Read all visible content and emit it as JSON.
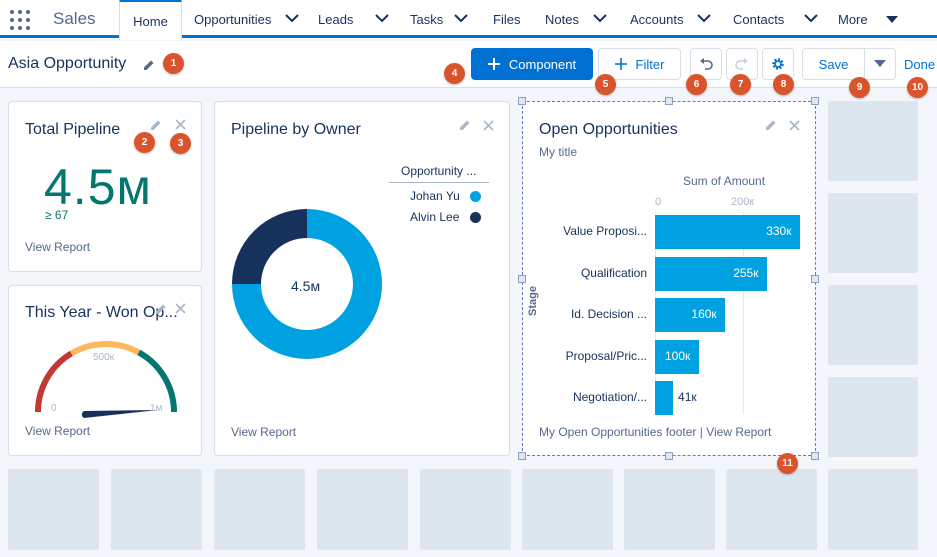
{
  "app": {
    "name": "Sales"
  },
  "nav": {
    "tabs": [
      {
        "label": "Home",
        "active": true,
        "dropdown": false
      },
      {
        "label": "Opportunities",
        "dropdown": true
      },
      {
        "label": "Leads",
        "dropdown": true
      },
      {
        "label": "Tasks",
        "dropdown": true
      },
      {
        "label": "Files",
        "dropdown": false
      },
      {
        "label": "Notes",
        "dropdown": true
      },
      {
        "label": "Accounts",
        "dropdown": true
      },
      {
        "label": "Contacts",
        "dropdown": true
      },
      {
        "label": "More",
        "dropdown": true
      }
    ]
  },
  "header": {
    "title": "Asia Opportunity",
    "component_label": "Component",
    "filter_label": "Filter",
    "save_label": "Save",
    "done_label": "Done"
  },
  "badges": [
    "1",
    "2",
    "3",
    "4",
    "5",
    "6",
    "7",
    "8",
    "9",
    "10",
    "11"
  ],
  "cards": {
    "total_pipeline": {
      "title": "Total Pipeline",
      "value": "4.5м",
      "sub": "≥ 67",
      "link": "View Report"
    },
    "won_opps": {
      "title": "This Year - Won Op...",
      "min_label": "0",
      "mid_label": "500к",
      "max_label": "1м",
      "link": "View Report"
    },
    "pipeline_by_owner": {
      "title": "Pipeline by Owner",
      "legend_title": "Opportunity ...",
      "center_label": "4.5м",
      "link": "View Report"
    },
    "open_opps": {
      "title": "Open Opportunities",
      "subtitle": "My title",
      "footer": "My Open Opportunities footer | View Report"
    }
  },
  "colors": {
    "accent": "#0070d2",
    "badge": "#d9532c",
    "bar": "#00a1e0",
    "navy": "#16325c",
    "teal": "#04776c"
  },
  "chart_data": [
    {
      "type": "pie",
      "title": "Pipeline by Owner",
      "legend_title": "Opportunity ...",
      "slices": [
        {
          "name": "Johan Yu",
          "value": 0.75,
          "color": "#00a1e0"
        },
        {
          "name": "Alvin Lee",
          "value": 0.25,
          "color": "#16325c"
        }
      ],
      "center_label": "4.5м",
      "legend_position": "top-right"
    },
    {
      "type": "bar",
      "orientation": "horizontal",
      "title": "Open Opportunities",
      "xlabel": "Sum of Amount",
      "ylabel": "Stage",
      "x_ticks": [
        "0",
        "200к"
      ],
      "xlim": [
        0,
        350
      ],
      "categories": [
        "Value Proposi...",
        "Qualification",
        "Id. Decision ...",
        "Proposal/Pric...",
        "Negotiation/..."
      ],
      "values": [
        330,
        255,
        160,
        100,
        41
      ],
      "value_labels": [
        "330к",
        "255к",
        "160к",
        "100к",
        "41к"
      ]
    },
    {
      "type": "gauge",
      "title": "This Year - Won Op...",
      "range": [
        0,
        1000
      ],
      "tick_labels": [
        "0",
        "500к",
        "1м"
      ],
      "needle_value": 0.85,
      "segments": [
        {
          "from": 0,
          "to": 0.33,
          "color": "#c23934"
        },
        {
          "from": 0.33,
          "to": 0.66,
          "color": "#ffb75d"
        },
        {
          "from": 0.66,
          "to": 1,
          "color": "#04776c"
        }
      ]
    }
  ]
}
